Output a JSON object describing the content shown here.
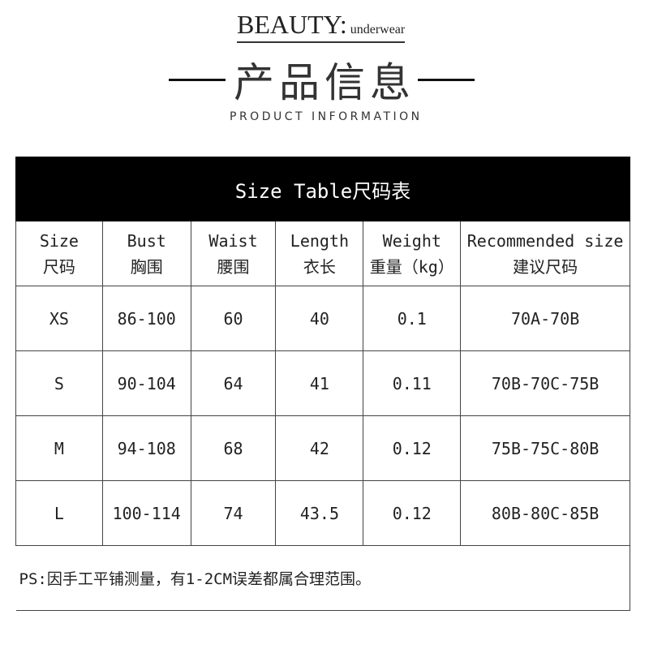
{
  "brand": {
    "main": "BEAUTY:",
    "sub": "underwear"
  },
  "title_cn": "产品信息",
  "title_en": "PRODUCT INFORMATION",
  "table": {
    "title": "Size Table尺码表",
    "headers": [
      {
        "en": "Size",
        "cn": "尺码"
      },
      {
        "en": "Bust",
        "cn": "胸围"
      },
      {
        "en": "Waist",
        "cn": "腰围"
      },
      {
        "en": "Length",
        "cn": "衣长"
      },
      {
        "en": "Weight",
        "cn": "重量（kg）"
      },
      {
        "en": "Recommended size",
        "cn": "建议尺码"
      }
    ],
    "rows": [
      [
        "XS",
        "86-100",
        "60",
        "40",
        "0.1",
        "70A-70B"
      ],
      [
        "S",
        "90-104",
        "64",
        "41",
        "0.11",
        "70B-70C-75B"
      ],
      [
        "M",
        "94-108",
        "68",
        "42",
        "0.12",
        "75B-75C-80B"
      ],
      [
        "L",
        "100-114",
        "74",
        "43.5",
        "0.12",
        "80B-80C-85B"
      ]
    ],
    "note": "PS:因手工平铺测量，有1-2CM误差都属合理范围。"
  }
}
